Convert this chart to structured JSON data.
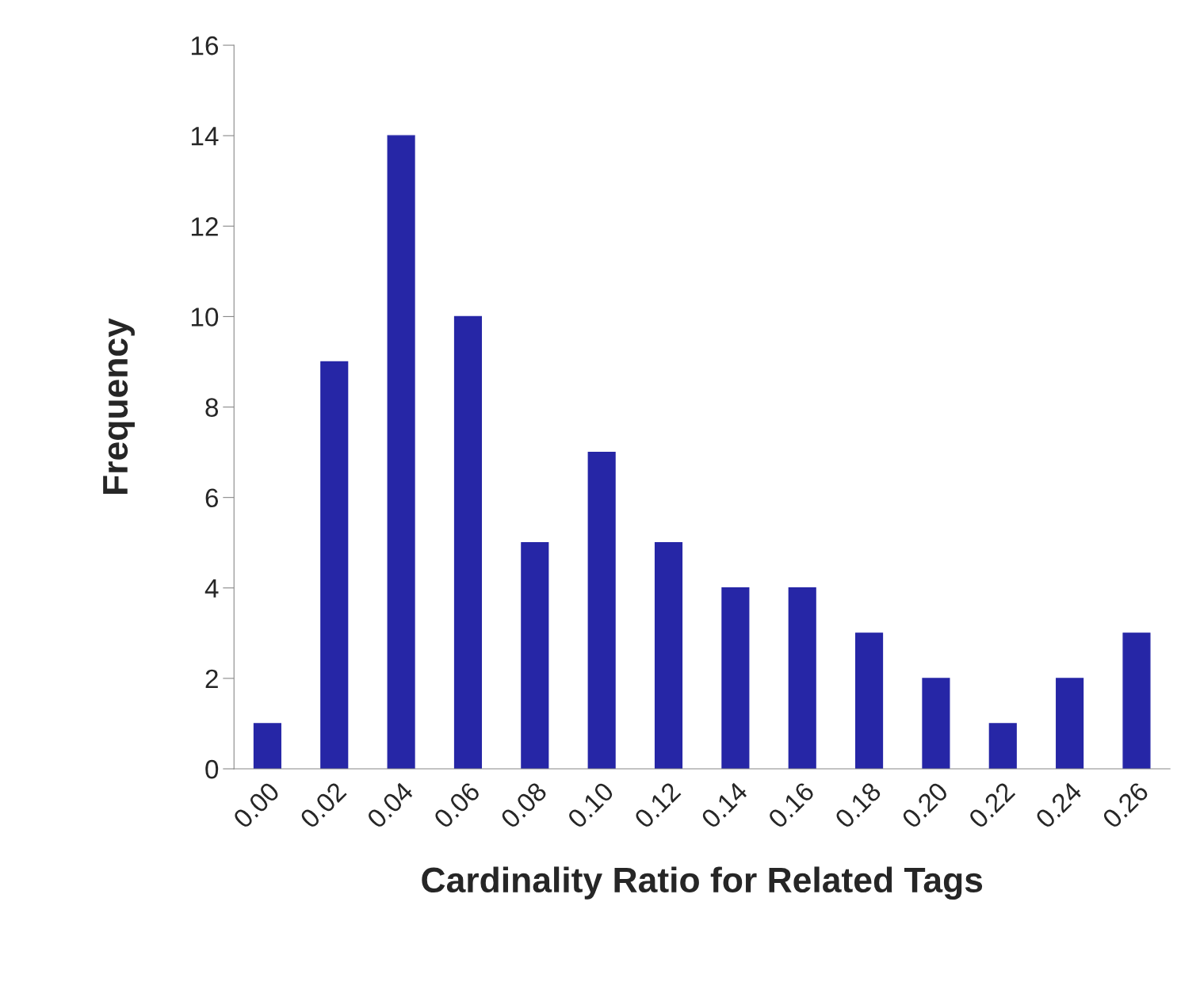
{
  "chart_data": {
    "type": "bar",
    "xlabel": "Cardinality Ratio for Related Tags",
    "ylabel": "Frequency",
    "categories": [
      "0.00",
      "0.02",
      "0.04",
      "0.06",
      "0.08",
      "0.10",
      "0.12",
      "0.14",
      "0.16",
      "0.18",
      "0.20",
      "0.22",
      "0.24",
      "0.26"
    ],
    "values": [
      1,
      9,
      14,
      10,
      5,
      7,
      5,
      4,
      4,
      3,
      2,
      1,
      2,
      3
    ],
    "color": "#2626a6",
    "ylim": [
      0,
      16
    ],
    "yticks": [
      0,
      2,
      4,
      6,
      8,
      10,
      12,
      14,
      16
    ],
    "grid": false,
    "legend": false
  }
}
